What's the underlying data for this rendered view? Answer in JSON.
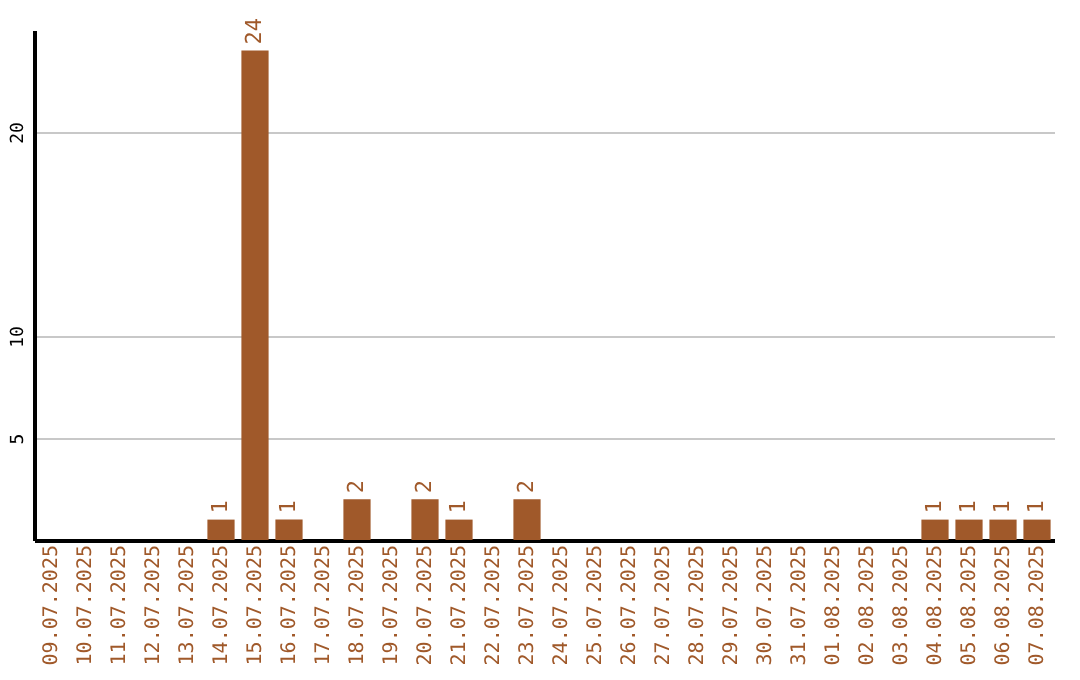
{
  "chart_data": {
    "type": "bar",
    "categories": [
      "09.07.2025",
      "10.07.2025",
      "11.07.2025",
      "12.07.2025",
      "13.07.2025",
      "14.07.2025",
      "15.07.2025",
      "16.07.2025",
      "17.07.2025",
      "18.07.2025",
      "19.07.2025",
      "20.07.2025",
      "21.07.2025",
      "22.07.2025",
      "23.07.2025",
      "24.07.2025",
      "25.07.2025",
      "26.07.2025",
      "27.07.2025",
      "28.07.2025",
      "29.07.2025",
      "30.07.2025",
      "31.07.2025",
      "01.08.2025",
      "02.08.2025",
      "03.08.2025",
      "04.08.2025",
      "05.08.2025",
      "06.08.2025",
      "07.08.2025"
    ],
    "values": [
      0,
      0,
      0,
      0,
      0,
      1,
      24,
      1,
      0,
      2,
      0,
      2,
      1,
      0,
      2,
      0,
      0,
      0,
      0,
      0,
      0,
      0,
      0,
      0,
      0,
      0,
      1,
      1,
      1,
      1
    ],
    "value_labels": [
      null,
      null,
      null,
      null,
      null,
      "1",
      "24",
      "1",
      null,
      "2",
      null,
      "2",
      "1",
      null,
      "2",
      null,
      null,
      null,
      null,
      null,
      null,
      null,
      null,
      null,
      null,
      null,
      "1",
      "1",
      "1",
      "1"
    ],
    "color": "#a0592a",
    "ylim": [
      0,
      25
    ],
    "yticks": [
      5,
      10,
      20
    ],
    "grid": "y"
  }
}
